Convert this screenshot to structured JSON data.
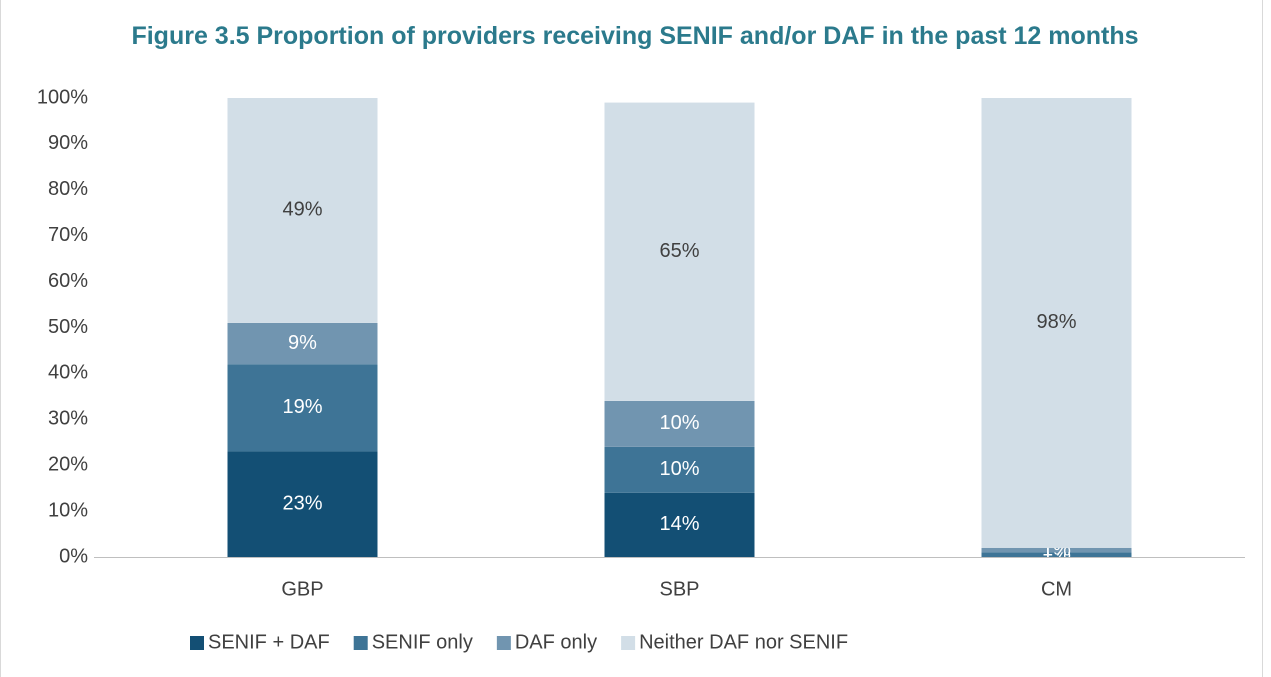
{
  "chart_data": {
    "type": "stacked_bar",
    "title": "Figure 3.5 Proportion of providers receiving SENIF and/or DAF in the past 12 months",
    "categories": [
      "GBP",
      "SBP",
      "CM"
    ],
    "series": [
      {
        "name": "SENIF + DAF",
        "color": "#134f74",
        "values": [
          23,
          14,
          0
        ],
        "value_labels": [
          "23%",
          "14%",
          "0%"
        ]
      },
      {
        "name": "SENIF only",
        "color": "#3e7496",
        "values": [
          19,
          10,
          1
        ],
        "value_labels": [
          "19%",
          "10%",
          "1%"
        ]
      },
      {
        "name": "DAF only",
        "color": "#7195b0",
        "values": [
          9,
          10,
          1
        ],
        "value_labels": [
          "9%",
          "10%",
          "1%"
        ]
      },
      {
        "name": "Neither DAF nor SENIF",
        "color": "#d2dee7",
        "values": [
          49,
          65,
          98
        ],
        "value_labels": [
          "49%",
          "65%",
          "98%"
        ]
      }
    ],
    "ylim": [
      0,
      100
    ],
    "yticks": [
      {
        "value": 0,
        "label": "0%"
      },
      {
        "value": 10,
        "label": "10%"
      },
      {
        "value": 20,
        "label": "20%"
      },
      {
        "value": 30,
        "label": "30%"
      },
      {
        "value": 40,
        "label": "40%"
      },
      {
        "value": 50,
        "label": "50%"
      },
      {
        "value": 60,
        "label": "60%"
      },
      {
        "value": 70,
        "label": "70%"
      },
      {
        "value": 80,
        "label": "80%"
      },
      {
        "value": 90,
        "label": "90%"
      },
      {
        "value": 100,
        "label": "100%"
      }
    ],
    "legend": "bottom"
  }
}
